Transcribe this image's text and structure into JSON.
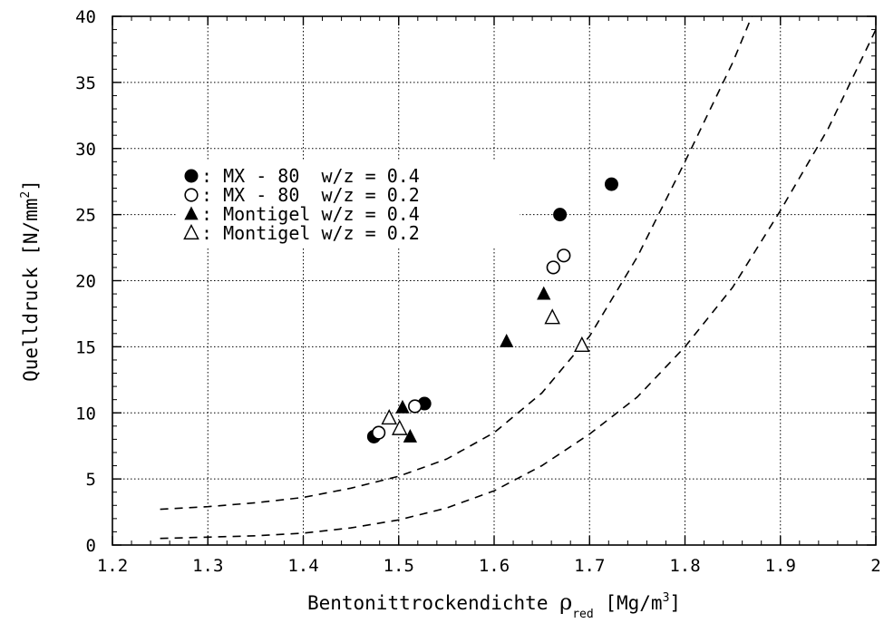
{
  "chart_data": {
    "type": "scatter",
    "xlabel_main": "Bentonittrockendichte ",
    "xlabel_symbol": "ρ",
    "xlabel_sub": "red",
    "xlabel_unit": " [Mg/m",
    "xlabel_unit_sup": "3",
    "xlabel_unit_close": "]",
    "ylabel_main": "Quelldruck [N/mm",
    "ylabel_sup": "2",
    "ylabel_close": "]",
    "xlim": [
      1.2,
      2.0
    ],
    "ylim": [
      0,
      40
    ],
    "x_ticks": [
      "1.2",
      "1.3",
      "1.4",
      "1.5",
      "1.6",
      "1.7",
      "1.8",
      "1.9",
      "2"
    ],
    "y_ticks": [
      "0",
      "5",
      "10",
      "15",
      "20",
      "25",
      "30",
      "35",
      "40"
    ],
    "grid": true,
    "legend_position": "upper-left",
    "series": [
      {
        "name": ": MX - 80  w/z = 0.4",
        "marker": "filled-circle",
        "points": [
          [
            1.474,
            8.2
          ],
          [
            1.527,
            10.7
          ],
          [
            1.669,
            25.0
          ],
          [
            1.723,
            27.3
          ]
        ]
      },
      {
        "name": ": MX - 80  w/z = 0.2",
        "marker": "open-circle",
        "points": [
          [
            1.479,
            8.5
          ],
          [
            1.517,
            10.5
          ],
          [
            1.662,
            21.0
          ],
          [
            1.673,
            21.9
          ]
        ]
      },
      {
        "name": ": Montigel w/z = 0.4",
        "marker": "filled-triangle",
        "points": [
          [
            1.504,
            10.4
          ],
          [
            1.512,
            8.2
          ],
          [
            1.613,
            15.4
          ],
          [
            1.652,
            19.0
          ]
        ]
      },
      {
        "name": ": Montigel w/z = 0.2",
        "marker": "open-triangle",
        "points": [
          [
            1.49,
            9.6
          ],
          [
            1.501,
            8.8
          ],
          [
            1.661,
            17.2
          ],
          [
            1.692,
            15.1
          ]
        ]
      }
    ],
    "curves": [
      {
        "style": "dashed",
        "points": [
          [
            1.25,
            2.7
          ],
          [
            1.3,
            2.9
          ],
          [
            1.35,
            3.2
          ],
          [
            1.4,
            3.6
          ],
          [
            1.45,
            4.3
          ],
          [
            1.5,
            5.2
          ],
          [
            1.55,
            6.5
          ],
          [
            1.6,
            8.5
          ],
          [
            1.65,
            11.5
          ],
          [
            1.7,
            15.8
          ],
          [
            1.75,
            21.8
          ],
          [
            1.8,
            29.0
          ],
          [
            1.85,
            36.5
          ],
          [
            1.87,
            40.0
          ]
        ]
      },
      {
        "style": "dashed",
        "points": [
          [
            1.25,
            0.5
          ],
          [
            1.3,
            0.6
          ],
          [
            1.35,
            0.7
          ],
          [
            1.4,
            0.9
          ],
          [
            1.45,
            1.3
          ],
          [
            1.5,
            1.9
          ],
          [
            1.55,
            2.8
          ],
          [
            1.6,
            4.1
          ],
          [
            1.65,
            6.0
          ],
          [
            1.7,
            8.4
          ],
          [
            1.75,
            11.2
          ],
          [
            1.8,
            15.0
          ],
          [
            1.85,
            19.5
          ],
          [
            1.9,
            25.3
          ],
          [
            1.95,
            31.5
          ],
          [
            2.0,
            39.0
          ]
        ]
      }
    ]
  }
}
